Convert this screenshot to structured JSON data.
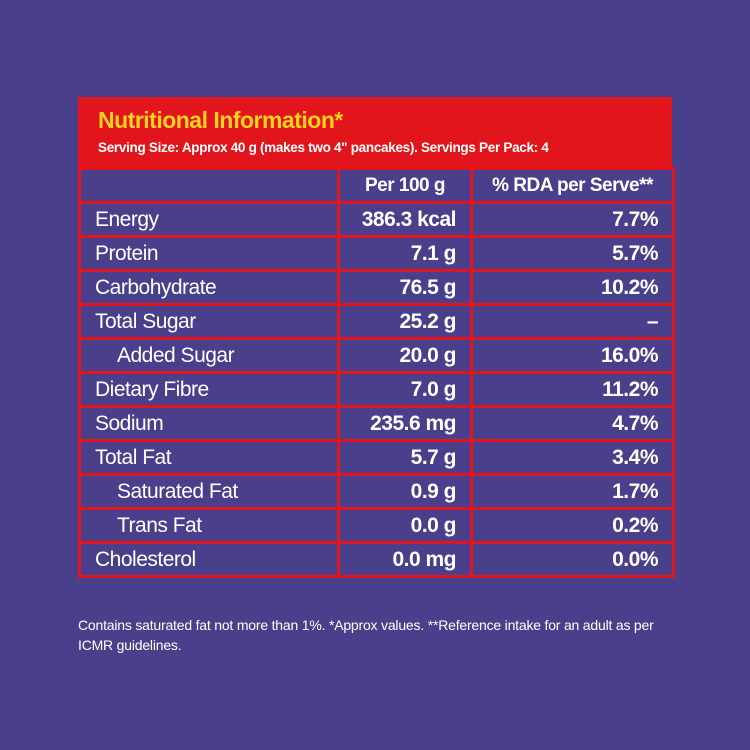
{
  "header": {
    "title": "Nutritional Information*",
    "subtitle": "Serving Size: Approx 40 g (makes two 4\" pancakes). Servings Per Pack: 4"
  },
  "table": {
    "columns": [
      "Per 100 g",
      "% RDA per Serve**"
    ],
    "rows": [
      [
        "Energy",
        "386.3 kcal",
        "7.7%"
      ],
      [
        "Protein",
        "7.1 g",
        "5.7%"
      ],
      [
        "Carbohydrate",
        "76.5 g",
        "10.2%"
      ],
      [
        "Total Sugar",
        "25.2 g",
        "–"
      ],
      [
        "Added Sugar",
        "20.0 g",
        "16.0%"
      ],
      [
        "Dietary Fibre",
        "7.0 g",
        "11.2%"
      ],
      [
        "Sodium",
        "235.6 mg",
        "4.7%"
      ],
      [
        "Total Fat",
        "5.7 g",
        "3.4%"
      ],
      [
        "Saturated Fat",
        "0.9 g",
        "1.7%"
      ],
      [
        "Trans Fat",
        "0.0 g",
        "0.2%"
      ],
      [
        "Cholesterol",
        "0.0 mg",
        "0.0%"
      ]
    ]
  },
  "footnote": "Contains saturated fat not more than 1%. *Approx values. **Reference intake for an adult as per ICMR guidelines."
}
